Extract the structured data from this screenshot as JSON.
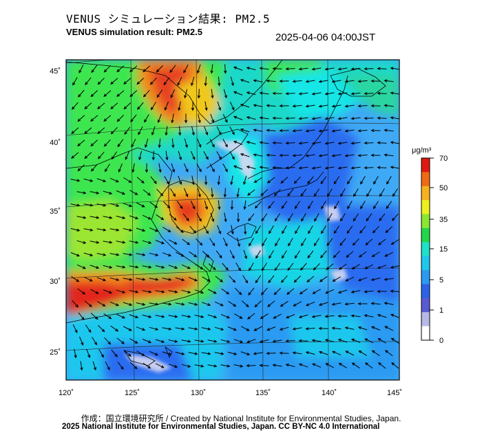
{
  "header": {
    "title_jp": "VENUS シミュレーション結果: PM2.5",
    "title_en": "VENUS simulation result: PM2.5",
    "timestamp": "2025-04-06 04:00JST"
  },
  "map": {
    "lon_labels": [
      "120˚",
      "125˚",
      "130˚",
      "135˚",
      "140˚",
      "145˚"
    ],
    "lat_labels": [
      "45˚",
      "40˚",
      "35˚",
      "30˚",
      "25˚"
    ],
    "lon_values": [
      120,
      125,
      130,
      135,
      140,
      145
    ],
    "lat_values": [
      45,
      40,
      35,
      30,
      25
    ],
    "lon_range": [
      120,
      145
    ],
    "lat_range": [
      23,
      46
    ],
    "field_colors": {
      "ocean_base": "#3fa9f5",
      "cyan": "#19e6e6",
      "green": "#3ee650",
      "yellow": "#f0e61e",
      "orange": "#f08c1e",
      "red": "#e02a1a",
      "blue": "#2a6cf0",
      "pale": "#d8d8f0"
    },
    "wind_vectors": "black arrows",
    "coastlines": "black"
  },
  "colorbar": {
    "unit": "μg/m³",
    "tick_labels": [
      "70",
      "50",
      "35",
      "15",
      "5",
      "1",
      "0"
    ],
    "tick_values": [
      70,
      50,
      35,
      15,
      5,
      1,
      0
    ],
    "colors": [
      "#e01a10",
      "#f06a14",
      "#f5b21e",
      "#eef01e",
      "#8be632",
      "#22d64a",
      "#1fe0c8",
      "#1fc7ee",
      "#2a9af2",
      "#2a63e6",
      "#5a5ad2",
      "#b8b8e6",
      "#ffffff"
    ]
  },
  "footer": {
    "credit": "作成：国立環境研究所 / Created by National Institute for Environmental Studies, Japan.",
    "copyright": "2025 National Institute for Environmental Studies, Japan. CC BY-NC 4.0 International"
  }
}
